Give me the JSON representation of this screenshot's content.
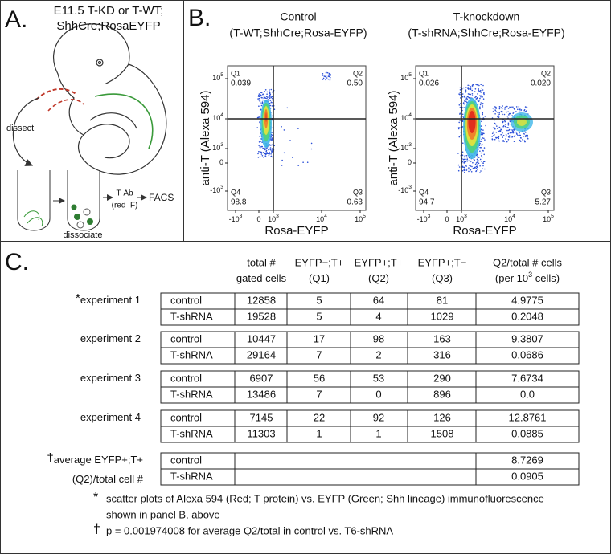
{
  "panel_a": {
    "label": "A.",
    "title_lines": [
      "E11.5 T-KD or T-WT;",
      "ShhCre;RosaEYFP"
    ],
    "dissect": "dissect",
    "dissociate": "dissociate",
    "antibody": "T-Ab",
    "antibody_note": "(red IF)",
    "facs": "FACS"
  },
  "panel_b": {
    "label": "B.",
    "x_ticks": [
      {
        "text": "-10",
        "sup": "3"
      },
      {
        "text": "0"
      },
      {
        "text": "10",
        "sup": "3"
      },
      {
        "text": "10",
        "sup": "4"
      },
      {
        "text": "10",
        "sup": "5"
      }
    ],
    "y_ticks": [
      {
        "text": "10",
        "sup": "5"
      },
      {
        "text": "10",
        "sup": "4"
      },
      {
        "text": "10",
        "sup": "3"
      },
      {
        "text": "0"
      },
      {
        "text": "-10",
        "sup": "3"
      }
    ],
    "plots": [
      {
        "title": "Control",
        "subtitle": "(T-WT;ShhCre;Rosa-EYFP)",
        "x_label": "Rosa-EYFP",
        "y_label": "anti-T (Alexa 594)",
        "quadrants": [
          {
            "name": "Q1",
            "value": "0.039"
          },
          {
            "name": "Q2",
            "value": "0.50"
          },
          {
            "name": "Q3",
            "value": "0.63"
          },
          {
            "name": "Q4",
            "value": "98.8"
          }
        ]
      },
      {
        "title": "T-knockdown",
        "subtitle": "(T-shRNA;ShhCre;Rosa-EYFP)",
        "x_label": "Rosa-EYFP",
        "y_label": "anti-T (Alexa 594)",
        "quadrants": [
          {
            "name": "Q1",
            "value": "0.026"
          },
          {
            "name": "Q2",
            "value": "0.020"
          },
          {
            "name": "Q3",
            "value": "5.27"
          },
          {
            "name": "Q4",
            "value": "94.7"
          }
        ]
      }
    ]
  },
  "panel_c": {
    "label": "C.",
    "header": [
      {
        "line1": "total #",
        "line2": "gated cells"
      },
      {
        "line1": "EYFP−;T+",
        "line2": "(Q1)"
      },
      {
        "line1": "EYFP+;T+",
        "line2": "(Q2)"
      },
      {
        "line1": "EYFP+;T−",
        "line2": "(Q3)"
      },
      {
        "line1": "Q2/total # cells",
        "line2": "(per 10",
        "sup": "3",
        "line2_end": " cells)"
      }
    ],
    "experiments": [
      {
        "marker": "*",
        "label": "experiment 1",
        "rows": [
          {
            "group": "control",
            "cells": [
              "12858",
              "5",
              "64",
              "81",
              "4.9775"
            ]
          },
          {
            "group": "T-shRNA",
            "cells": [
              "19528",
              "5",
              "4",
              "1029",
              "0.2048"
            ]
          }
        ]
      },
      {
        "label": "experiment 2",
        "rows": [
          {
            "group": "control",
            "cells": [
              "10447",
              "17",
              "98",
              "163",
              "9.3807"
            ]
          },
          {
            "group": "T-shRNA",
            "cells": [
              "29164",
              "7",
              "2",
              "316",
              "0.0686"
            ]
          }
        ]
      },
      {
        "label": "experiment 3",
        "rows": [
          {
            "group": "control",
            "cells": [
              "6907",
              "56",
              "53",
              "290",
              "7.6734"
            ]
          },
          {
            "group": "T-shRNA",
            "cells": [
              "13486",
              "7",
              "0",
              "896",
              "0.0"
            ]
          }
        ]
      },
      {
        "label": "experiment 4",
        "rows": [
          {
            "group": "control",
            "cells": [
              "7145",
              "22",
              "92",
              "126",
              "12.8761"
            ]
          },
          {
            "group": "T-shRNA",
            "cells": [
              "11303",
              "1",
              "1",
              "1508",
              "0.0885"
            ]
          }
        ]
      }
    ],
    "average": {
      "marker": "†",
      "label_lines": [
        "average EYFP+;T+",
        "(Q2)/total cell #"
      ],
      "rows": [
        {
          "group": "control",
          "value": "8.7269"
        },
        {
          "group": "T-shRNA",
          "value": "0.0905"
        }
      ]
    },
    "footnotes": [
      {
        "marker": "*",
        "lines": [
          "scatter plots of Alexa 594 (Red; T protein) vs. EYFP (Green; Shh lineage) immunofluorescence",
          "shown in panel B, above"
        ]
      },
      {
        "marker": "†",
        "lines": [
          "p = 0.001974008  for average Q2/total in control vs. T6-shRNA"
        ]
      }
    ]
  }
}
